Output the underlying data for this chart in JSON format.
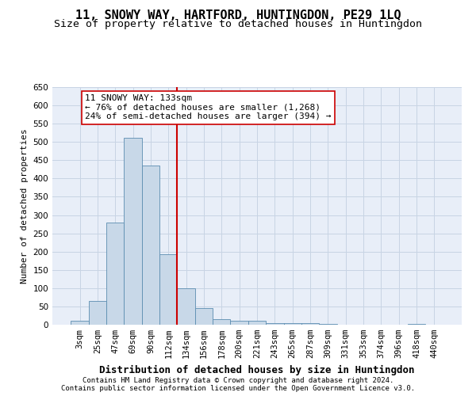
{
  "title": "11, SNOWY WAY, HARTFORD, HUNTINGDON, PE29 1LQ",
  "subtitle": "Size of property relative to detached houses in Huntingdon",
  "xlabel": "Distribution of detached houses by size in Huntingdon",
  "ylabel": "Number of detached properties",
  "footer_line1": "Contains HM Land Registry data © Crown copyright and database right 2024.",
  "footer_line2": "Contains public sector information licensed under the Open Government Licence v3.0.",
  "categories": [
    "3sqm",
    "25sqm",
    "47sqm",
    "69sqm",
    "90sqm",
    "112sqm",
    "134sqm",
    "156sqm",
    "178sqm",
    "200sqm",
    "221sqm",
    "243sqm",
    "265sqm",
    "287sqm",
    "309sqm",
    "331sqm",
    "353sqm",
    "374sqm",
    "396sqm",
    "418sqm",
    "440sqm"
  ],
  "values": [
    10,
    65,
    280,
    512,
    435,
    192,
    100,
    46,
    15,
    10,
    10,
    4,
    5,
    4,
    3,
    1,
    0,
    0,
    0,
    3,
    0
  ],
  "bar_color": "#c8d8e8",
  "bar_edge_color": "#5b8db0",
  "vline_x": 5.5,
  "annotation_text_line1": "11 SNOWY WAY: 133sqm",
  "annotation_text_line2": "← 76% of detached houses are smaller (1,268)",
  "annotation_text_line3": "24% of semi-detached houses are larger (394) →",
  "annotation_box_facecolor": "#ffffff",
  "annotation_box_edgecolor": "#cc0000",
  "vline_color": "#cc0000",
  "ylim": [
    0,
    650
  ],
  "yticks": [
    0,
    50,
    100,
    150,
    200,
    250,
    300,
    350,
    400,
    450,
    500,
    550,
    600,
    650
  ],
  "grid_color": "#c8d4e4",
  "bg_color": "#e8eef8",
  "title_fontsize": 11,
  "subtitle_fontsize": 9.5,
  "ylabel_fontsize": 8,
  "xlabel_fontsize": 9,
  "tick_fontsize": 7.5,
  "annot_fontsize": 8,
  "footer_fontsize": 6.5
}
